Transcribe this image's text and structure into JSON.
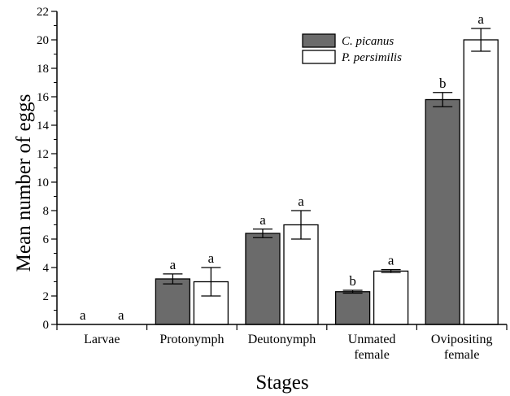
{
  "chart_data": {
    "type": "bar",
    "xlabel": "Stages",
    "ylabel": "Mean number of eggs",
    "ylim": [
      0,
      22
    ],
    "yticks": [
      0,
      2,
      4,
      6,
      8,
      10,
      12,
      14,
      16,
      18,
      20,
      22
    ],
    "categories": [
      [
        "Larvae"
      ],
      [
        "Protonymph"
      ],
      [
        "Deutonymph"
      ],
      [
        "Unmated",
        "female"
      ],
      [
        "Ovipositing",
        "female"
      ]
    ],
    "legend_position": "top-right",
    "grid": false,
    "series": [
      {
        "name": "C. picanus",
        "color": "#6b6b6b",
        "values": [
          0,
          3.2,
          6.4,
          2.3,
          15.8
        ],
        "errors": [
          0,
          0.35,
          0.3,
          0.1,
          0.5
        ],
        "significance": [
          "a",
          "a",
          "a",
          "b",
          "b"
        ]
      },
      {
        "name": "P. persimilis",
        "color": "#ffffff",
        "values": [
          0,
          3.0,
          7.0,
          3.75,
          20.0
        ],
        "errors": [
          0,
          1.0,
          1.0,
          0.1,
          0.8
        ],
        "significance": [
          "a",
          "a",
          "a",
          "a",
          "a"
        ]
      }
    ]
  }
}
